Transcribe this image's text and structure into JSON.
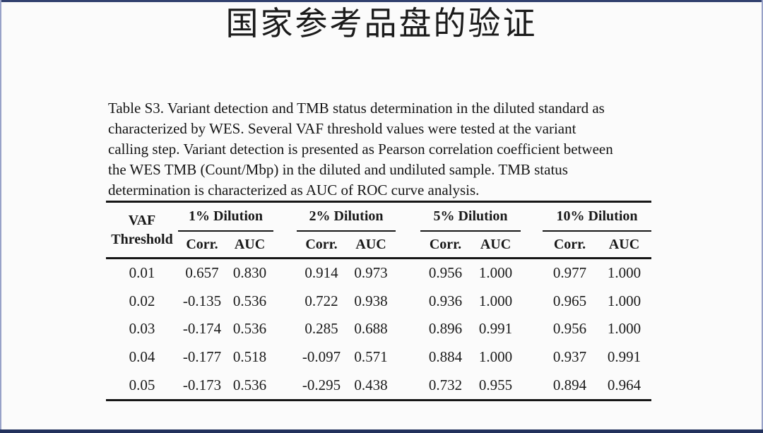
{
  "title": "国家参考品盘的验证",
  "caption": {
    "lines": [
      "Table S3. Variant detection and TMB status determination in the diluted standard as",
      "characterized by WES. Several VAF threshold values were tested at the variant",
      "calling step. Variant detection is presented as Pearson correlation coefficient between",
      "the WES TMB (Count/Mbp) in the diluted and undiluted sample. TMB status",
      "determination is characterized as AUC of ROC curve analysis."
    ]
  },
  "table": {
    "row_header": {
      "line1": "VAF",
      "line2": "Threshold"
    },
    "groups": [
      {
        "label": "1% Dilution"
      },
      {
        "label": "2% Dilution"
      },
      {
        "label": "5% Dilution"
      },
      {
        "label": "10% Dilution"
      }
    ],
    "subheaders": {
      "corr": "Corr.",
      "auc": "AUC"
    },
    "rows": [
      {
        "threshold": "0.01",
        "values": [
          "0.657",
          "0.830",
          "0.914",
          "0.973",
          "0.956",
          "1.000",
          "0.977",
          "1.000"
        ]
      },
      {
        "threshold": "0.02",
        "values": [
          "-0.135",
          "0.536",
          "0.722",
          "0.938",
          "0.936",
          "1.000",
          "0.965",
          "1.000"
        ]
      },
      {
        "threshold": "0.03",
        "values": [
          "-0.174",
          "0.536",
          "0.285",
          "0.688",
          "0.896",
          "0.991",
          "0.956",
          "1.000"
        ]
      },
      {
        "threshold": "0.04",
        "values": [
          "-0.177",
          "0.518",
          "-0.097",
          "0.571",
          "0.884",
          "1.000",
          "0.937",
          "0.991"
        ]
      },
      {
        "threshold": "0.05",
        "values": [
          "-0.173",
          "0.536",
          "-0.295",
          "0.438",
          "0.732",
          "0.955",
          "0.894",
          "0.964"
        ]
      }
    ]
  },
  "colors": {
    "frame_top": "#31406e",
    "frame_bottom": "#22315c",
    "frame_side": "#98a2c8",
    "text": "#151515",
    "rule": "#161616",
    "background": "#fbfbfb"
  }
}
